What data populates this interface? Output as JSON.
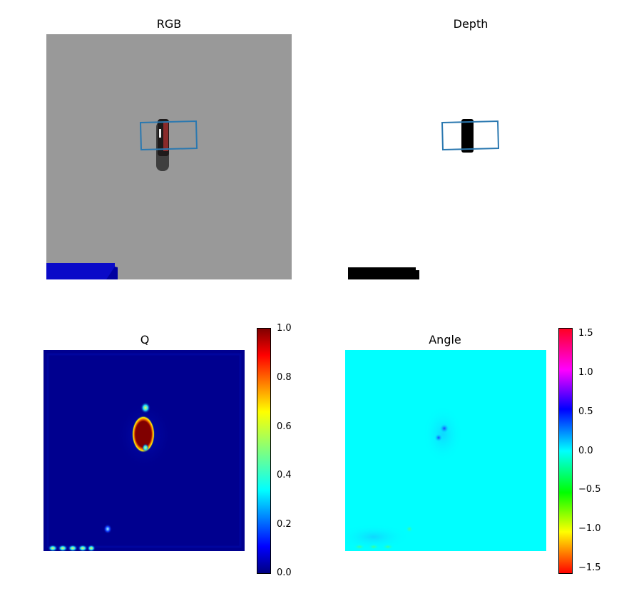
{
  "chart_data": [
    {
      "type": "image",
      "title": "RGB",
      "grasp_rect": true,
      "colors": {
        "background": "#999999",
        "object": "#444444",
        "base": "#0a0ac8",
        "grasp": "#2a78b0"
      }
    },
    {
      "type": "image",
      "title": "Depth",
      "grasp_rect": true,
      "colors": {
        "background": "#ffffff",
        "object": "#000000",
        "grasp": "#2a78b0"
      }
    },
    {
      "type": "heatmap",
      "title": "Q",
      "colormap": "jet",
      "colorbar": {
        "ticks": [
          "1.0",
          "0.8",
          "0.6",
          "0.4",
          "0.2",
          "0.0"
        ],
        "range": [
          0.0,
          1.0
        ]
      }
    },
    {
      "type": "heatmap",
      "title": "Angle",
      "colormap": "hsv",
      "colorbar": {
        "ticks": [
          "1.5",
          "1.0",
          "0.5",
          "0.0",
          "−0.5",
          "−1.0",
          "−1.5"
        ],
        "range": [
          -1.5708,
          1.5708
        ]
      }
    }
  ]
}
